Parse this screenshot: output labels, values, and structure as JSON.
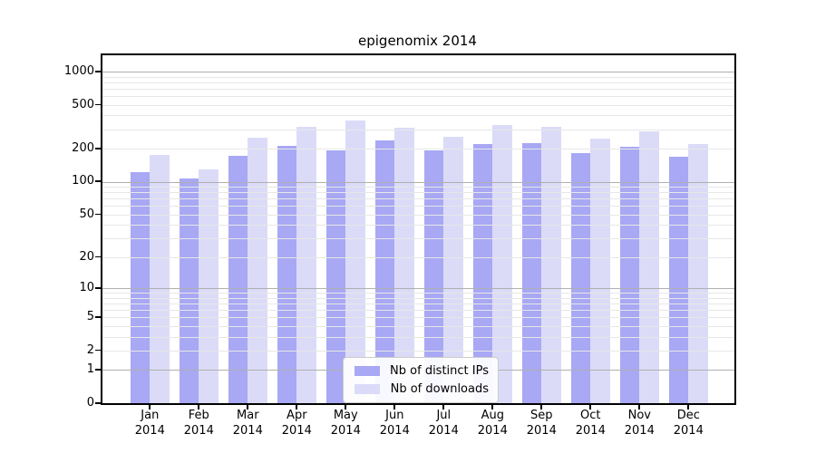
{
  "title": "epigenomix 2014",
  "chart_data": {
    "type": "bar",
    "title": "epigenomix 2014",
    "categories": [
      "Jan",
      "Feb",
      "Mar",
      "Apr",
      "May",
      "Jun",
      "Jul",
      "Aug",
      "Sep",
      "Oct",
      "Nov",
      "Dec"
    ],
    "year": "2014",
    "series": [
      {
        "name": "Nb of distinct IPs",
        "color": "#a8a8f4",
        "values": [
          122,
          107,
          172,
          213,
          194,
          237,
          192,
          220,
          225,
          181,
          209,
          170
        ]
      },
      {
        "name": "Nb of downloads",
        "color": "#dbdbf8",
        "values": [
          174,
          130,
          251,
          315,
          360,
          309,
          256,
          329,
          315,
          245,
          285,
          219
        ]
      }
    ],
    "y_ticks": [
      0,
      1,
      2,
      5,
      10,
      20,
      50,
      100,
      200,
      500,
      1000
    ],
    "y_scale": "log10(1+v)",
    "ylim": [
      0,
      1400
    ],
    "xlabel": "",
    "ylabel": "",
    "grid": "horizontal major+minor, drawn over bars",
    "legend_position": "lower-center"
  },
  "colors": {
    "grid_major": "#b0b0b0",
    "grid_minor": "#e7e7e7",
    "axis": "#000000",
    "background": "#ffffff"
  }
}
